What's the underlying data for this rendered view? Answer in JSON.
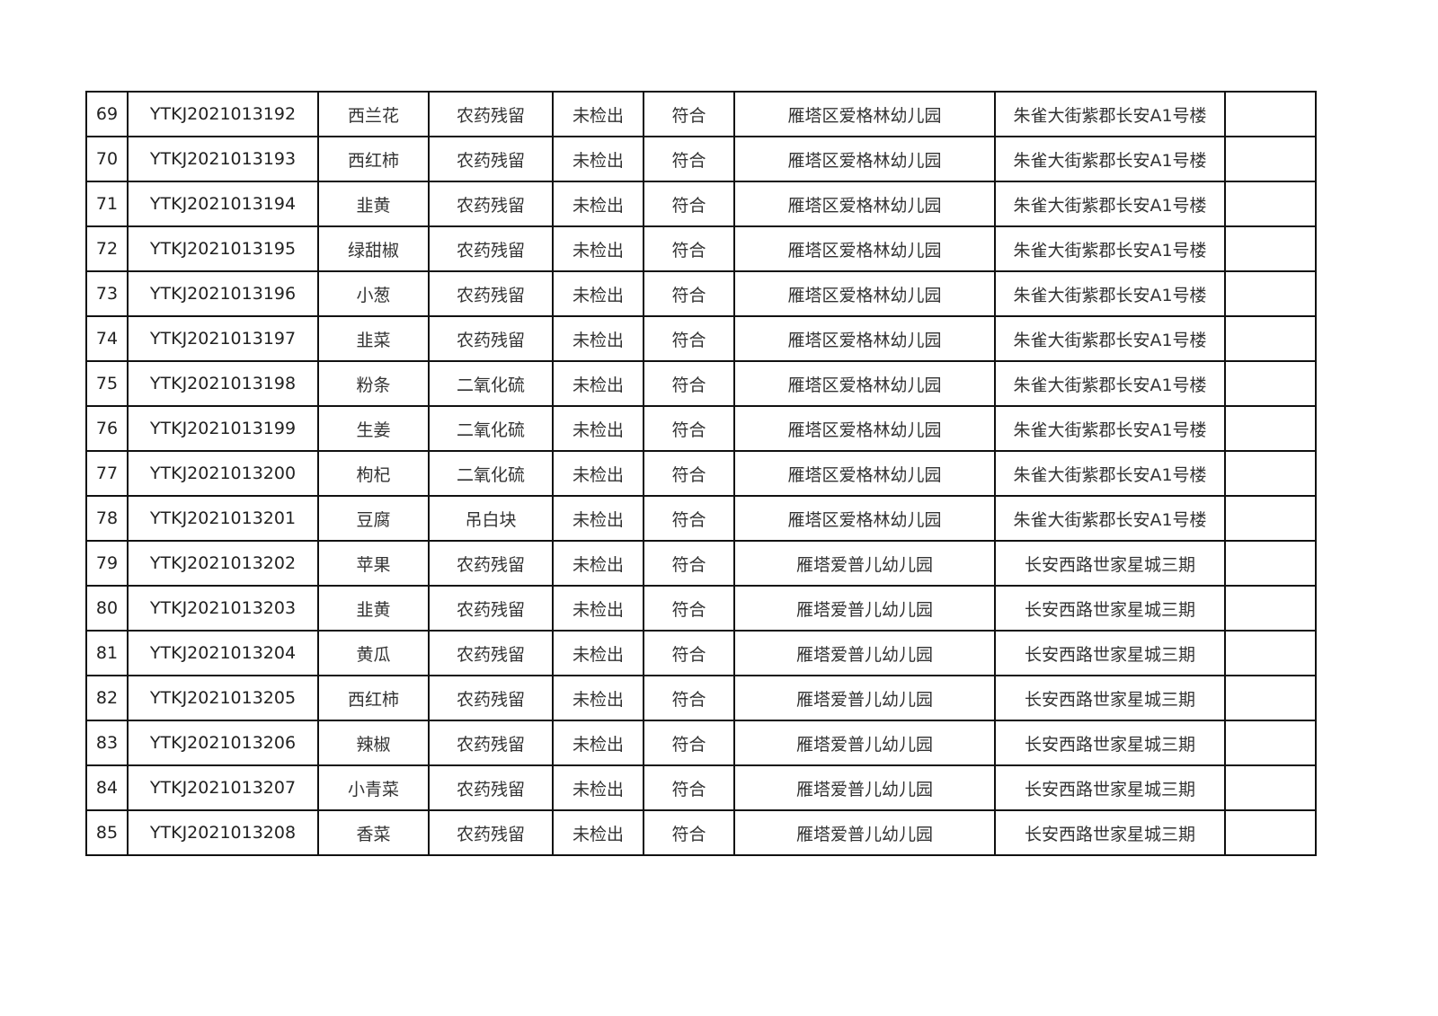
{
  "table": {
    "rows": [
      [
        "69",
        "YTKJ2021013192",
        "西兰花",
        "农药残留",
        "未检出",
        "符合",
        "雁塔区爱格林幼儿园",
        "朱雀大街紫郡长安A1号楼",
        ""
      ],
      [
        "70",
        "YTKJ2021013193",
        "西红柿",
        "农药残留",
        "未检出",
        "符合",
        "雁塔区爱格林幼儿园",
        "朱雀大街紫郡长安A1号楼",
        ""
      ],
      [
        "71",
        "YTKJ2021013194",
        "韭黄",
        "农药残留",
        "未检出",
        "符合",
        "雁塔区爱格林幼儿园",
        "朱雀大街紫郡长安A1号楼",
        ""
      ],
      [
        "72",
        "YTKJ2021013195",
        "绿甜椒",
        "农药残留",
        "未检出",
        "符合",
        "雁塔区爱格林幼儿园",
        "朱雀大街紫郡长安A1号楼",
        ""
      ],
      [
        "73",
        "YTKJ2021013196",
        "小葱",
        "农药残留",
        "未检出",
        "符合",
        "雁塔区爱格林幼儿园",
        "朱雀大街紫郡长安A1号楼",
        ""
      ],
      [
        "74",
        "YTKJ2021013197",
        "韭菜",
        "农药残留",
        "未检出",
        "符合",
        "雁塔区爱格林幼儿园",
        "朱雀大街紫郡长安A1号楼",
        ""
      ],
      [
        "75",
        "YTKJ2021013198",
        "粉条",
        "二氧化硫",
        "未检出",
        "符合",
        "雁塔区爱格林幼儿园",
        "朱雀大街紫郡长安A1号楼",
        ""
      ],
      [
        "76",
        "YTKJ2021013199",
        "生姜",
        "二氧化硫",
        "未检出",
        "符合",
        "雁塔区爱格林幼儿园",
        "朱雀大街紫郡长安A1号楼",
        ""
      ],
      [
        "77",
        "YTKJ2021013200",
        "枸杞",
        "二氧化硫",
        "未检出",
        "符合",
        "雁塔区爱格林幼儿园",
        "朱雀大街紫郡长安A1号楼",
        ""
      ],
      [
        "78",
        "YTKJ2021013201",
        "豆腐",
        "吊白块",
        "未检出",
        "符合",
        "雁塔区爱格林幼儿园",
        "朱雀大街紫郡长安A1号楼",
        ""
      ],
      [
        "79",
        "YTKJ2021013202",
        "苹果",
        "农药残留",
        "未检出",
        "符合",
        "雁塔爱普儿幼儿园",
        "长安西路世家星城三期",
        ""
      ],
      [
        "80",
        "YTKJ2021013203",
        "韭黄",
        "农药残留",
        "未检出",
        "符合",
        "雁塔爱普儿幼儿园",
        "长安西路世家星城三期",
        ""
      ],
      [
        "81",
        "YTKJ2021013204",
        "黄瓜",
        "农药残留",
        "未检出",
        "符合",
        "雁塔爱普儿幼儿园",
        "长安西路世家星城三期",
        ""
      ],
      [
        "82",
        "YTKJ2021013205",
        "西红柿",
        "农药残留",
        "未检出",
        "符合",
        "雁塔爱普儿幼儿园",
        "长安西路世家星城三期",
        ""
      ],
      [
        "83",
        "YTKJ2021013206",
        "辣椒",
        "农药残留",
        "未检出",
        "符合",
        "雁塔爱普儿幼儿园",
        "长安西路世家星城三期",
        ""
      ],
      [
        "84",
        "YTKJ2021013207",
        "小青菜",
        "农药残留",
        "未检出",
        "符合",
        "雁塔爱普儿幼儿园",
        "长安西路世家星城三期",
        ""
      ],
      [
        "85",
        "YTKJ2021013208",
        "香菜",
        "农药残留",
        "未检出",
        "符合",
        "雁塔爱普儿幼儿园",
        "长安西路世家星城三期",
        ""
      ]
    ]
  }
}
